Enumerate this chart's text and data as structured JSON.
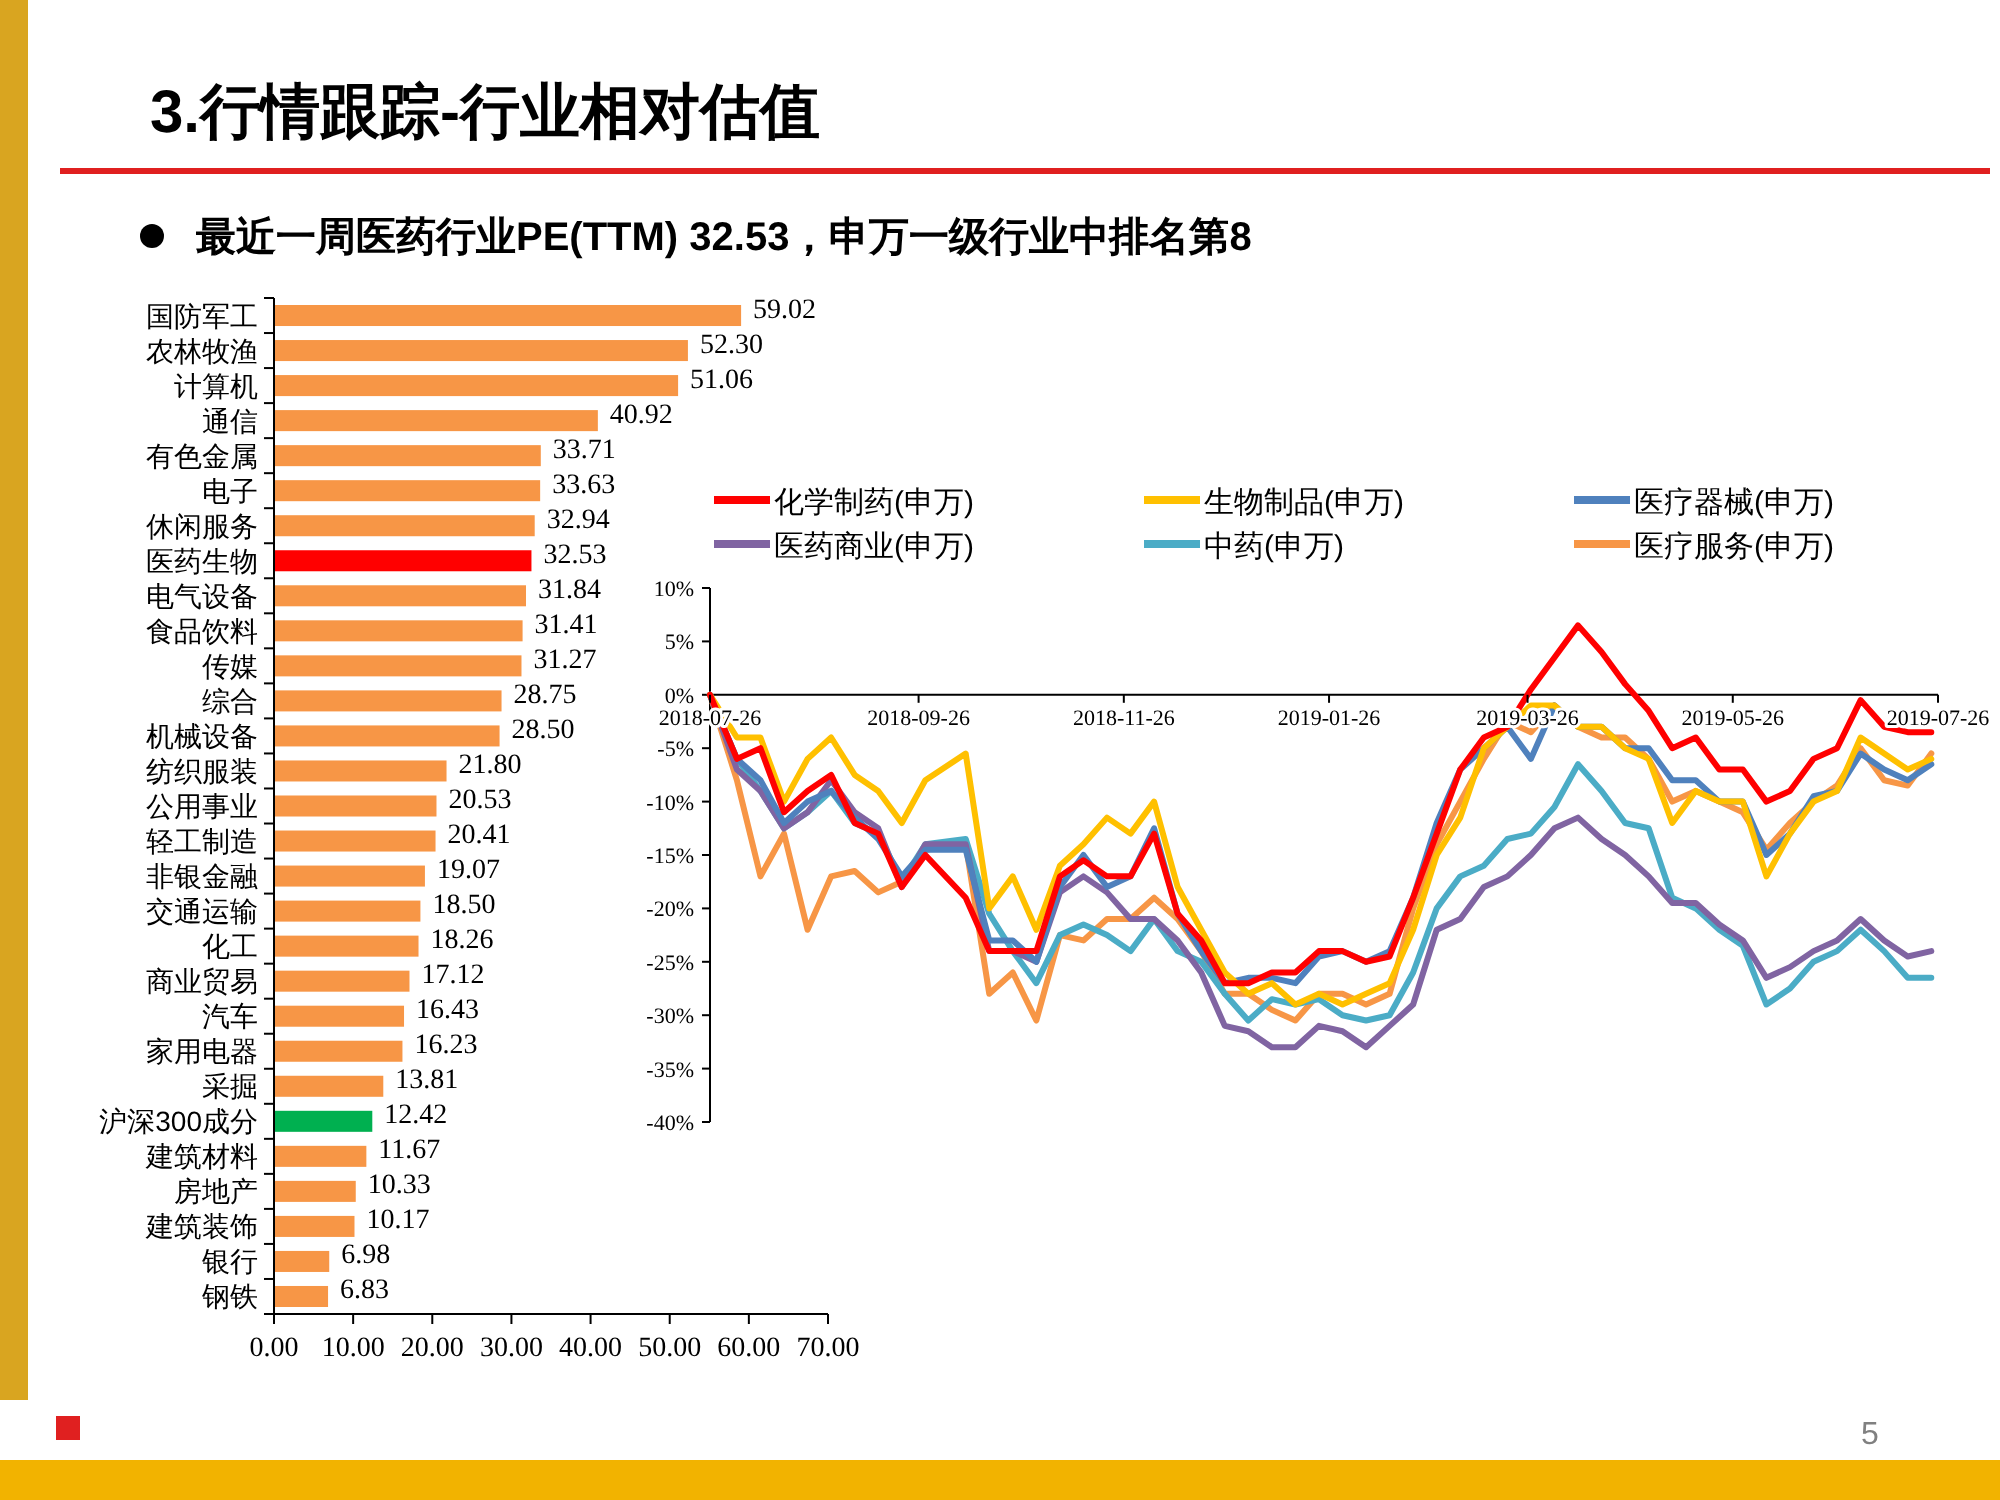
{
  "chart_data": [
    {
      "type": "bar",
      "orientation": "horizontal",
      "title": "3.行情跟踪-行业相对估值",
      "subtitle": "最近一周医药行业PE(TTM) 32.53，申万一级行业中排名第8",
      "categories": [
        "国防军工",
        "农林牧渔",
        "计算机",
        "通信",
        "有色金属",
        "电子",
        "休闲服务",
        "医药生物",
        "电气设备",
        "食品饮料",
        "传媒",
        "综合",
        "机械设备",
        "纺织服装",
        "公用事业",
        "轻工制造",
        "非银金融",
        "交通运输",
        "化工",
        "商业贸易",
        "汽车",
        "家用电器",
        "采掘",
        "沪深300成分",
        "建筑材料",
        "房地产",
        "建筑装饰",
        "银行",
        "钢铁"
      ],
      "values": [
        59.02,
        52.3,
        51.06,
        40.92,
        33.71,
        33.63,
        32.94,
        32.53,
        31.84,
        31.41,
        31.27,
        28.75,
        28.5,
        21.8,
        20.53,
        20.41,
        19.07,
        18.5,
        18.26,
        17.12,
        16.43,
        16.23,
        13.81,
        12.42,
        11.67,
        10.33,
        10.17,
        6.98,
        6.83
      ],
      "value_labels": [
        "59.02",
        "52.30",
        "51.06",
        "40.92",
        "33.71",
        "33.63",
        "32.94",
        "32.53",
        "31.84",
        "31.41",
        "31.27",
        "28.75",
        "28.50",
        "21.80",
        "20.53",
        "20.41",
        "19.07",
        "18.50",
        "18.26",
        "17.12",
        "16.43",
        "16.23",
        "13.81",
        "12.42",
        "11.67",
        "10.33",
        "10.17",
        "6.98",
        "6.83"
      ],
      "colors": [
        "#f79646",
        "#f79646",
        "#f79646",
        "#f79646",
        "#f79646",
        "#f79646",
        "#f79646",
        "#ff0000",
        "#f79646",
        "#f79646",
        "#f79646",
        "#f79646",
        "#f79646",
        "#f79646",
        "#f79646",
        "#f79646",
        "#f79646",
        "#f79646",
        "#f79646",
        "#f79646",
        "#f79646",
        "#f79646",
        "#f79646",
        "#00b050",
        "#f79646",
        "#f79646",
        "#f79646",
        "#f79646",
        "#f79646"
      ],
      "xlim": [
        0,
        70
      ],
      "xticks": [
        {
          "value": 0,
          "label": "0.00"
        },
        {
          "value": 10,
          "label": "10.00"
        },
        {
          "value": 20,
          "label": "20.00"
        },
        {
          "value": 30,
          "label": "30.00"
        },
        {
          "value": 40,
          "label": "40.00"
        },
        {
          "value": 50,
          "label": "50.00"
        },
        {
          "value": 60,
          "label": "60.00"
        },
        {
          "value": 70,
          "label": "70.00"
        }
      ],
      "annotations": [
        "5"
      ]
    },
    {
      "type": "line",
      "x": [
        "2018-07-26",
        "2018-08-03",
        "2018-08-10",
        "2018-08-17",
        "2018-08-24",
        "2018-08-31",
        "2018-09-07",
        "2018-09-14",
        "2018-09-21",
        "2018-09-28",
        "2018-10-10",
        "2018-10-17",
        "2018-10-24",
        "2018-10-31",
        "2018-11-07",
        "2018-11-14",
        "2018-11-21",
        "2018-11-28",
        "2018-12-05",
        "2018-12-12",
        "2018-12-19",
        "2018-12-26",
        "2019-01-02",
        "2019-01-09",
        "2019-01-16",
        "2019-01-23",
        "2019-01-30",
        "2019-02-06",
        "2019-02-13",
        "2019-02-20",
        "2019-02-27",
        "2019-03-06",
        "2019-03-13",
        "2019-03-20",
        "2019-03-27",
        "2019-04-03",
        "2019-04-10",
        "2019-04-17",
        "2019-04-24",
        "2019-05-01",
        "2019-05-08",
        "2019-05-15",
        "2019-05-22",
        "2019-05-29",
        "2019-06-05",
        "2019-06-12",
        "2019-06-19",
        "2019-06-26",
        "2019-07-03",
        "2019-07-10",
        "2019-07-17",
        "2019-07-24"
      ],
      "series": [
        {
          "name": "化学制药(申万)",
          "color": "#ff0000",
          "values": [
            0,
            -6,
            -5,
            -11,
            -9,
            -7.5,
            -12,
            -13,
            -18,
            -15,
            -19,
            -24,
            -24,
            -24,
            -17,
            -15.5,
            -17,
            -17,
            -13,
            -20.5,
            -23,
            -27,
            -27,
            -26,
            -26,
            -24,
            -24,
            -25,
            -24.5,
            -19,
            -13,
            -7,
            -4,
            -3,
            0.5,
            3.5,
            6.5,
            4,
            1,
            -1.5,
            -5,
            -4,
            -7,
            -7,
            -10,
            -9,
            -6,
            -5,
            -0.5,
            -3,
            -3.5,
            -3.5
          ]
        },
        {
          "name": "生物制品(申万)",
          "color": "#ffc000",
          "values": [
            0,
            -4,
            -4,
            -10,
            -6,
            -4,
            -7.5,
            -9,
            -12,
            -8,
            -5.5,
            -20,
            -17,
            -22,
            -16,
            -14,
            -11.5,
            -13,
            -10,
            -18,
            -22,
            -26,
            -28,
            -27,
            -29,
            -28,
            -29,
            -28,
            -27,
            -22,
            -15,
            -11.5,
            -5,
            -3,
            -1,
            -1,
            -3,
            -3,
            -5,
            -6,
            -12,
            -9,
            -10,
            -10,
            -17,
            -13,
            -10,
            -9,
            -4,
            -5.5,
            -7,
            -6
          ]
        },
        {
          "name": "医疗器械(申万)",
          "color": "#4f81bd",
          "values": [
            0,
            -6,
            -8,
            -12,
            -10,
            -9,
            -11.5,
            -13.5,
            -17,
            -14.5,
            -14.5,
            -23,
            -23,
            -25,
            -18,
            -15,
            -18,
            -17,
            -12.5,
            -20.5,
            -24,
            -27,
            -26.5,
            -26.5,
            -27,
            -24.5,
            -24,
            -25,
            -24,
            -19,
            -12,
            -7,
            -5,
            -3,
            -6,
            -1,
            -3,
            -3,
            -5,
            -5,
            -8,
            -8,
            -10,
            -10,
            -15,
            -13,
            -9.5,
            -9,
            -5.5,
            -7,
            -8,
            -6.5
          ]
        },
        {
          "name": "医药商业(申万)",
          "color": "#8064a2",
          "values": [
            0,
            -7,
            -9,
            -12.5,
            -11,
            -8,
            -11,
            -12.5,
            -18,
            -14,
            -14,
            -24,
            -24,
            -25,
            -18.5,
            -17,
            -18.5,
            -21,
            -21,
            -23,
            -26,
            -31,
            -31.5,
            -33,
            -33,
            -31,
            -31.5,
            -33,
            -31,
            -29,
            -22,
            -21,
            -18,
            -17,
            -15,
            -12.5,
            -11.5,
            -13.5,
            -15,
            -17,
            -19.5,
            -19.5,
            -21.5,
            -23,
            -26.5,
            -25.5,
            -24,
            -23,
            -21,
            -23,
            -24.5,
            -24
          ]
        },
        {
          "name": "中药(申万)",
          "color": "#4bacc6",
          "values": [
            0,
            -6,
            -9,
            -12.5,
            -11,
            -9,
            -12,
            -13,
            -17.5,
            -14,
            -13.5,
            -20.5,
            -24,
            -27,
            -22.5,
            -21.5,
            -22.5,
            -24,
            -21,
            -24,
            -25,
            -28,
            -30.5,
            -28.5,
            -29,
            -28.5,
            -30,
            -30.5,
            -30,
            -26,
            -20,
            -17,
            -16,
            -13.5,
            -13,
            -10.5,
            -6.5,
            -9,
            -12,
            -12.5,
            -19,
            -20,
            -22,
            -23.5,
            -29,
            -27.5,
            -25,
            -24,
            -22,
            -24,
            -26.5,
            -26.5
          ]
        },
        {
          "name": "医疗服务(申万)",
          "color": "#f79646",
          "values": [
            0,
            -8,
            -17,
            -13,
            -22,
            -17,
            -16.5,
            -18.5,
            -17.5,
            -14.5,
            -14,
            -28,
            -26,
            -30.5,
            -22.5,
            -23,
            -21,
            -21,
            -19,
            -21,
            -24,
            -28,
            -28,
            -29.5,
            -30.5,
            -28,
            -28,
            -29,
            -28,
            -20,
            -14,
            -10,
            -6,
            -2.5,
            -3.5,
            -1,
            -3,
            -4,
            -4,
            -6,
            -10,
            -9,
            -10,
            -11,
            -14.5,
            -12,
            -10,
            -8.5,
            -5,
            -8,
            -8.5,
            -5.5
          ]
        }
      ],
      "xlim": [
        "2018-07-26",
        "2019-07-26"
      ],
      "xticks": [
        "2018-07-26",
        "2018-09-26",
        "2018-11-26",
        "2019-01-26",
        "2019-03-26",
        "2019-05-26",
        "2019-07-26"
      ],
      "ylim": [
        -40,
        10
      ],
      "yticks": [
        {
          "value": 10,
          "label": "10%"
        },
        {
          "value": 5,
          "label": "5%"
        },
        {
          "value": 0,
          "label": "0%"
        },
        {
          "value": -5,
          "label": "-5%"
        },
        {
          "value": -10,
          "label": "-10%"
        },
        {
          "value": -15,
          "label": "-15%"
        },
        {
          "value": -20,
          "label": "-20%"
        },
        {
          "value": -25,
          "label": "-25%"
        },
        {
          "value": -30,
          "label": "-30%"
        },
        {
          "value": -35,
          "label": "-35%"
        },
        {
          "value": -40,
          "label": "-40%"
        }
      ],
      "legend": "top"
    }
  ]
}
